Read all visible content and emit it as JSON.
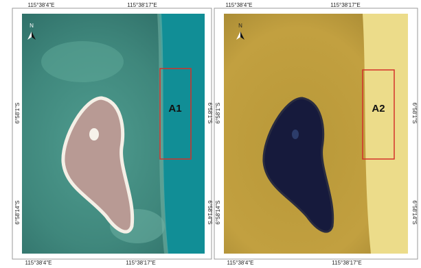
{
  "panels": [
    {
      "label": "A1",
      "north": "N",
      "top_labels": [
        "115°38'4\"E",
        "115°38'17\"E"
      ],
      "bottom_labels": [
        "115°38'4\"E",
        "115°38'17\"E"
      ],
      "left_labels": [
        "6°58'1\"S",
        "6°58'14\"S"
      ],
      "right_labels": [
        "6°58'1\"S",
        "6°58'14\"S"
      ]
    },
    {
      "label": "A2",
      "north": "N",
      "top_labels": [
        "115°38'4\"E",
        "115°38'17\"E"
      ],
      "bottom_labels": [
        "115°38'4\"E",
        "115°38'17\"E"
      ],
      "left_labels": [
        "6°58'1\"S",
        "6°58'14\"S"
      ],
      "right_labels": [
        "6°58'1\"S",
        "6°58'14\"S"
      ]
    }
  ]
}
